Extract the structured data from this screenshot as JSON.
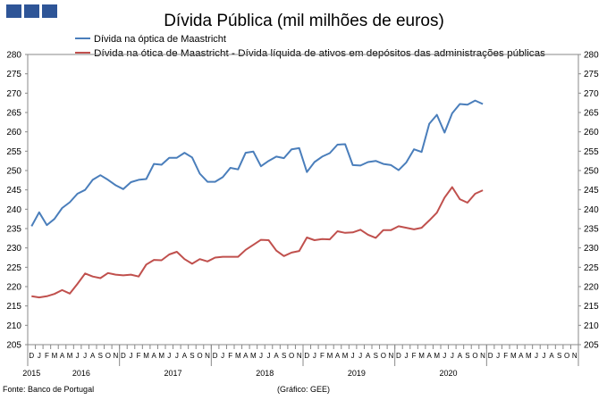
{
  "chart_data": {
    "type": "line",
    "title": "Dívida Pública (mil milhões de euros)",
    "xlabel": "",
    "ylabel": "",
    "ylim": [
      205,
      280
    ],
    "yticks": [
      205,
      210,
      215,
      220,
      225,
      230,
      235,
      240,
      245,
      250,
      255,
      260,
      265,
      270,
      275,
      280
    ],
    "grid": false,
    "legend": "top-center",
    "month_labels": [
      "D",
      "J",
      "F",
      "M",
      "A",
      "M",
      "J",
      "J",
      "A",
      "S",
      "O",
      "N",
      "D",
      "J",
      "F",
      "M",
      "A",
      "M",
      "J",
      "J",
      "A",
      "S",
      "O",
      "N",
      "D",
      "J",
      "F",
      "M",
      "A",
      "M",
      "J",
      "J",
      "A",
      "S",
      "O",
      "N",
      "D",
      "J",
      "F",
      "M",
      "A",
      "M",
      "J",
      "J",
      "A",
      "S",
      "O",
      "N",
      "D",
      "J",
      "F",
      "M",
      "A",
      "M",
      "J",
      "J",
      "A",
      "S",
      "O",
      "N",
      "D",
      "J",
      "F",
      "M",
      "A",
      "M",
      "J",
      "J",
      "A",
      "S",
      "O",
      "N"
    ],
    "year_labels": [
      "2015",
      "2016",
      "2017",
      "2018",
      "2019",
      "2020"
    ],
    "series": [
      {
        "name": "Dívida na óptica de Maastricht",
        "color": "#4a7ebb",
        "values": [
          235.6,
          239.2,
          235.9,
          237.5,
          240.3,
          241.8,
          244.0,
          245.0,
          247.6,
          248.8,
          247.6,
          246.2,
          245.2,
          247.0,
          247.6,
          247.8,
          251.7,
          251.5,
          253.3,
          253.3,
          254.6,
          253.4,
          249.2,
          247.1,
          247.1,
          248.3,
          250.7,
          250.3,
          254.6,
          254.9,
          251.1,
          252.5,
          253.6,
          253.2,
          255.5,
          255.8,
          249.6,
          252.2,
          253.6,
          254.5,
          256.7,
          256.8,
          251.4,
          251.3,
          252.2,
          252.5,
          251.7,
          251.4,
          250.1,
          252.1,
          255.5,
          254.8,
          262.1,
          264.4,
          259.8,
          264.8,
          267.2,
          267.0,
          268.1,
          267.2
        ]
      },
      {
        "name": "Dívida na ótica de Maastricht - Dívida líquida de ativos em depósitos das administrações públicas",
        "color": "#c0504d",
        "values": [
          217.5,
          217.2,
          217.5,
          218.1,
          219.1,
          218.2,
          220.7,
          223.4,
          222.6,
          222.2,
          223.5,
          223.1,
          222.9,
          223.1,
          222.6,
          225.7,
          226.9,
          226.8,
          228.3,
          229.0,
          227.1,
          225.9,
          227.1,
          226.5,
          227.5,
          227.7,
          227.7,
          227.7,
          229.5,
          230.8,
          232.1,
          232.0,
          229.3,
          227.9,
          228.8,
          229.2,
          232.7,
          232.0,
          232.3,
          232.2,
          234.3,
          233.9,
          234.0,
          234.7,
          233.4,
          232.6,
          234.6,
          234.6,
          235.6,
          235.2,
          234.8,
          235.2,
          237.1,
          239.1,
          243.0,
          245.7,
          242.6,
          241.7,
          244.0,
          244.9
        ]
      }
    ]
  },
  "footer": {
    "source": "Fonte: Banco de Portugal",
    "graphic": "(Gráfico: GEE)"
  }
}
